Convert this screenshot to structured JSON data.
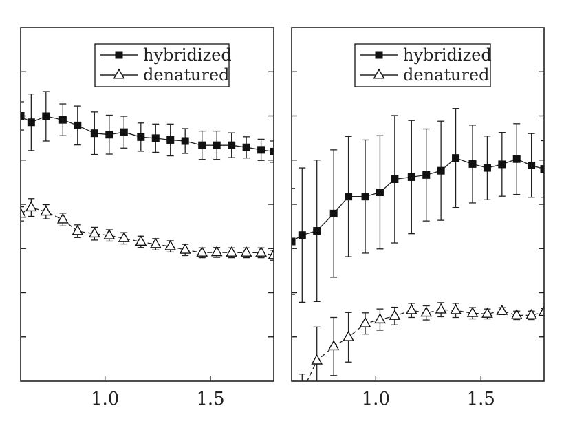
{
  "chart_data": [
    {
      "type": "line",
      "xlim": [
        0.6,
        1.8
      ],
      "ylim": [
        0,
        1
      ],
      "x_ticks": [
        1.0,
        1.5
      ],
      "x_tick_labels": [
        "1.0",
        "1.5"
      ],
      "y_tick_count": 8,
      "grid": false,
      "legend_position": "top-center",
      "series": [
        {
          "name": "hybridized",
          "marker": "filled-square",
          "color": "#000000",
          "x": [
            0.6,
            0.65,
            0.72,
            0.8,
            0.87,
            0.95,
            1.02,
            1.09,
            1.17,
            1.24,
            1.31,
            1.38,
            1.46,
            1.53,
            1.6,
            1.67,
            1.74,
            1.8
          ],
          "y": [
            0.75,
            0.732,
            0.749,
            0.739,
            0.723,
            0.701,
            0.697,
            0.704,
            0.69,
            0.687,
            0.682,
            0.679,
            0.667,
            0.667,
            0.667,
            0.661,
            0.654,
            0.649
          ],
          "err": [
            0.04,
            0.08,
            0.07,
            0.045,
            0.055,
            0.06,
            0.055,
            0.045,
            0.04,
            0.04,
            0.045,
            0.035,
            0.04,
            0.04,
            0.035,
            0.03,
            0.03,
            0.03
          ]
        },
        {
          "name": "denatured",
          "marker": "open-triangle",
          "color": "#000000",
          "x": [
            0.6,
            0.65,
            0.72,
            0.8,
            0.87,
            0.95,
            1.02,
            1.09,
            1.17,
            1.24,
            1.31,
            1.38,
            1.46,
            1.53,
            1.6,
            1.67,
            1.74,
            1.8
          ],
          "y": [
            0.473,
            0.491,
            0.479,
            0.457,
            0.424,
            0.417,
            0.412,
            0.404,
            0.394,
            0.387,
            0.381,
            0.371,
            0.363,
            0.364,
            0.363,
            0.363,
            0.363,
            0.356
          ],
          "err": [
            0.02,
            0.025,
            0.02,
            0.018,
            0.018,
            0.018,
            0.016,
            0.016,
            0.016,
            0.016,
            0.016,
            0.016,
            0.014,
            0.014,
            0.014,
            0.014,
            0.014,
            0.014
          ]
        }
      ]
    },
    {
      "type": "line",
      "xlim": [
        0.6,
        1.8
      ],
      "ylim": [
        0,
        1
      ],
      "x_ticks": [
        1.0,
        1.5
      ],
      "x_tick_labels": [
        "1.0",
        "1.5"
      ],
      "y_tick_count": 8,
      "grid": false,
      "legend_position": "top-center",
      "series": [
        {
          "name": "hybridized",
          "marker": "filled-square",
          "color": "#000000",
          "x": [
            0.6,
            0.65,
            0.72,
            0.8,
            0.87,
            0.95,
            1.02,
            1.09,
            1.17,
            1.24,
            1.31,
            1.38,
            1.46,
            1.53,
            1.6,
            1.67,
            1.74,
            1.8
          ],
          "y": [
            0.395,
            0.413,
            0.425,
            0.474,
            0.522,
            0.522,
            0.534,
            0.571,
            0.577,
            0.583,
            0.595,
            0.631,
            0.614,
            0.603,
            0.613,
            0.628,
            0.61,
            0.6
          ],
          "err": [
            0.15,
            0.19,
            0.2,
            0.18,
            0.17,
            0.16,
            0.16,
            0.18,
            0.16,
            0.13,
            0.14,
            0.14,
            0.11,
            0.09,
            0.09,
            0.1,
            0.09,
            0.08
          ]
        },
        {
          "name": "denatured",
          "marker": "open-triangle",
          "color": "#000000",
          "x": [
            0.6,
            0.65,
            0.72,
            0.8,
            0.87,
            0.95,
            1.02,
            1.09,
            1.17,
            1.24,
            1.31,
            1.38,
            1.46,
            1.53,
            1.6,
            1.67,
            1.74,
            1.8
          ],
          "y": [
            -0.05,
            -0.03,
            0.058,
            0.098,
            0.124,
            0.163,
            0.174,
            0.184,
            0.2,
            0.193,
            0.202,
            0.2,
            0.192,
            0.19,
            0.198,
            0.186,
            0.186,
            0.195
          ],
          "err": [
            0.05,
            0.05,
            0.095,
            0.082,
            0.07,
            0.03,
            0.03,
            0.025,
            0.02,
            0.02,
            0.02,
            0.02,
            0.016,
            0.014,
            0.01,
            0.012,
            0.012,
            0.01
          ]
        }
      ]
    }
  ]
}
